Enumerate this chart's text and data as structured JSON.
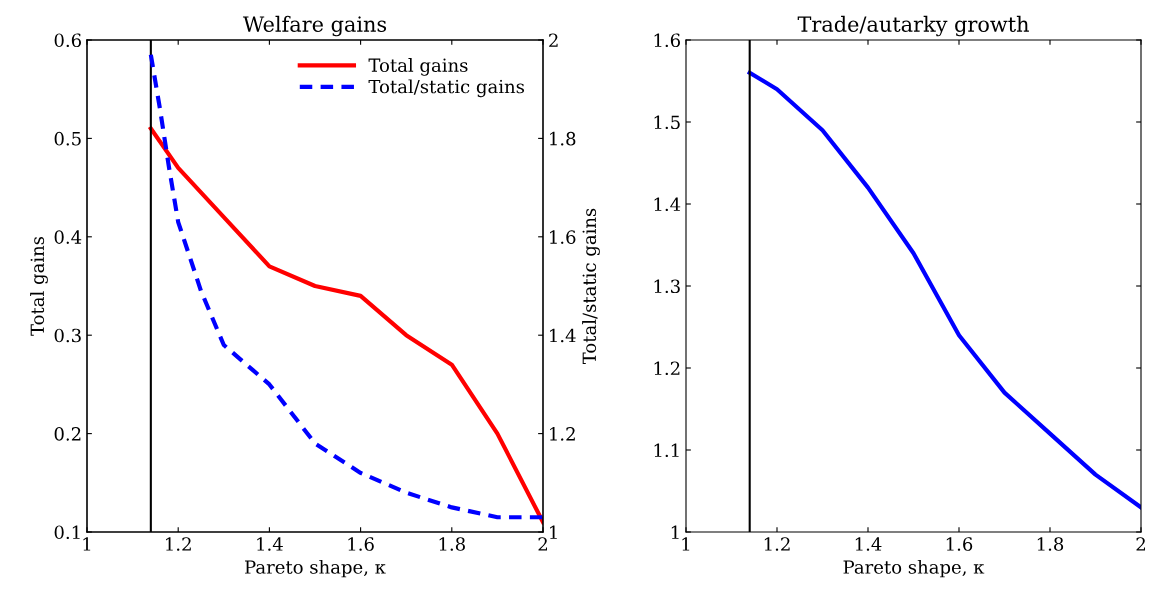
{
  "chart_data": [
    {
      "type": "line",
      "title": "Welfare gains",
      "xlabel": "Pareto shape, κ",
      "ylabel": "Total gains",
      "y2label": "Total/static gains",
      "xlim": [
        1,
        2
      ],
      "xticks": [
        1,
        1.2,
        1.4,
        1.6,
        1.8,
        2
      ],
      "ylim": [
        0.1,
        0.6
      ],
      "yticks": [
        0.1,
        0.2,
        0.3,
        0.4,
        0.5,
        0.6
      ],
      "y2lim": [
        1,
        2
      ],
      "y2ticks": [
        1,
        1.2,
        1.4,
        1.6,
        1.8,
        2
      ],
      "legend": "top right",
      "grid": false,
      "ref_lines": [
        {
          "axis": "x",
          "value": 1.14,
          "color": "#000000"
        }
      ],
      "series": [
        {
          "name": "Total gains",
          "color": "#ff0000",
          "line_style": "solid",
          "x": [
            1.14,
            1.2,
            1.3,
            1.4,
            1.5,
            1.6,
            1.7,
            1.8,
            1.9,
            2.0
          ],
          "values": [
            0.51,
            0.47,
            0.42,
            0.37,
            0.35,
            0.34,
            0.3,
            0.27,
            0.2,
            0.11
          ]
        },
        {
          "name": "Total/static gains",
          "color": "#0000ff",
          "line_style": "dashed",
          "axis": "y2",
          "x": [
            1.14,
            1.16,
            1.18,
            1.2,
            1.25,
            1.3,
            1.4,
            1.5,
            1.6,
            1.7,
            1.8,
            1.9,
            2.0
          ],
          "values": [
            1.97,
            1.86,
            1.74,
            1.63,
            1.49,
            1.38,
            1.3,
            1.18,
            1.12,
            1.08,
            1.05,
            1.03,
            1.03
          ]
        }
      ]
    },
    {
      "type": "line",
      "title": "Trade/autarky growth",
      "xlabel": "Pareto shape, κ",
      "xlim": [
        1,
        2
      ],
      "xticks": [
        1,
        1.2,
        1.4,
        1.6,
        1.8,
        2
      ],
      "ylim": [
        1,
        1.6
      ],
      "yticks": [
        1,
        1.1,
        1.2,
        1.3,
        1.4,
        1.5,
        1.6
      ],
      "grid": false,
      "ref_lines": [
        {
          "axis": "x",
          "value": 1.14,
          "color": "#000000"
        }
      ],
      "series": [
        {
          "color": "#0000ff",
          "line_style": "solid",
          "x": [
            1.14,
            1.2,
            1.3,
            1.4,
            1.5,
            1.6,
            1.7,
            1.8,
            1.9,
            2.0
          ],
          "values": [
            1.56,
            1.54,
            1.49,
            1.42,
            1.34,
            1.24,
            1.17,
            1.12,
            1.07,
            1.03
          ]
        }
      ]
    }
  ]
}
